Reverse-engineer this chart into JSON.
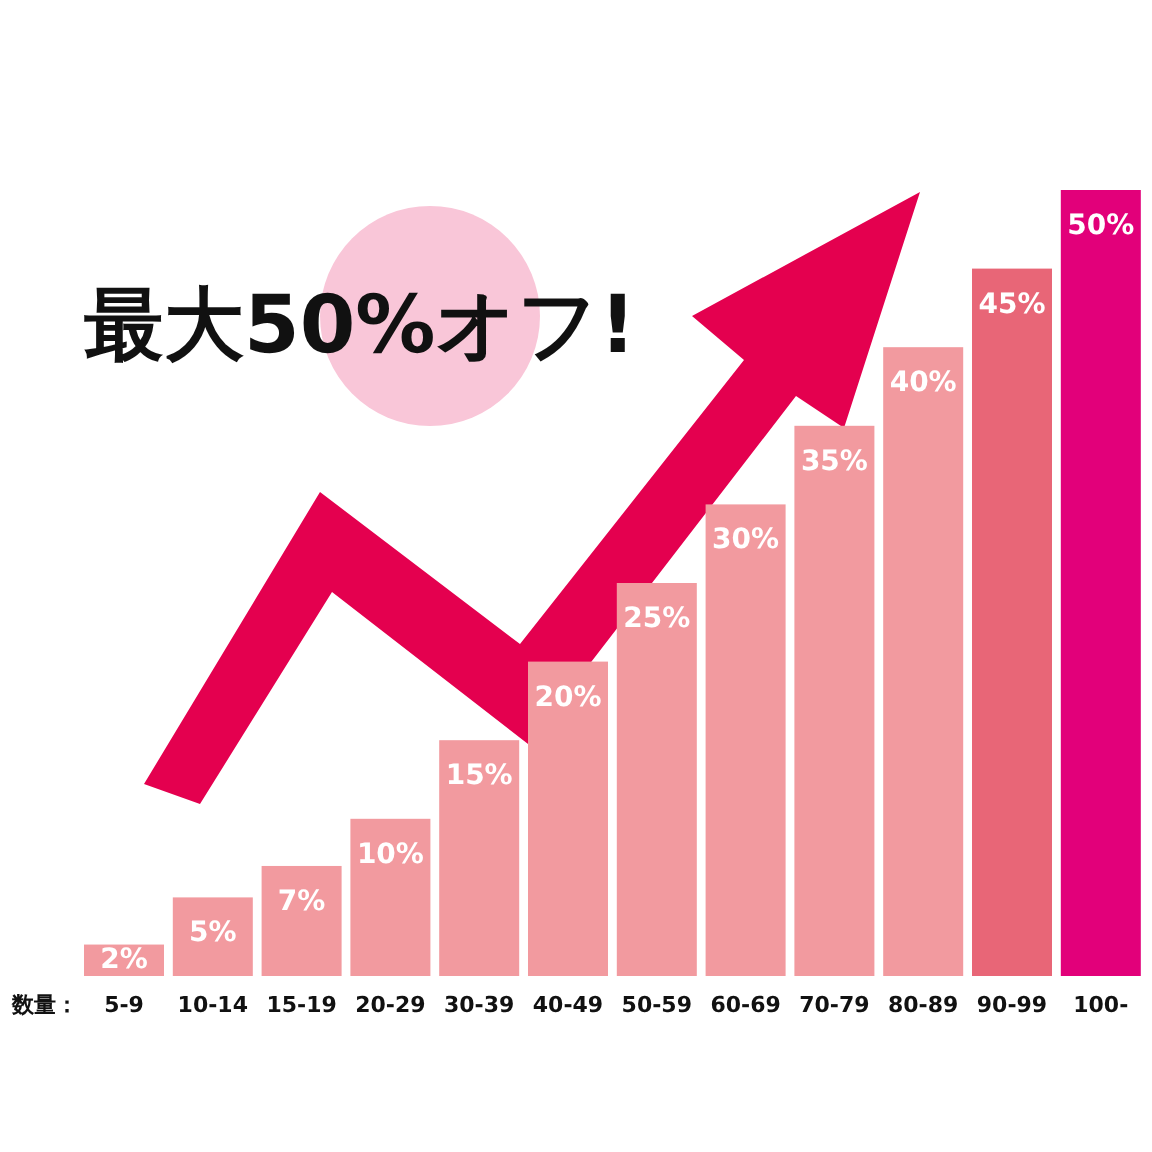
{
  "chart_data": {
    "type": "bar",
    "xlabel": "数量：",
    "annotations": [
      "最大50%オフ!"
    ],
    "categories": [
      "5-9",
      "10-14",
      "15-19",
      "20-29",
      "30-39",
      "40-49",
      "50-59",
      "60-69",
      "70-79",
      "80-89",
      "90-99",
      "100-"
    ],
    "values": [
      2,
      5,
      7,
      10,
      15,
      20,
      25,
      30,
      35,
      40,
      45,
      50
    ],
    "value_labels": [
      "2%",
      "5%",
      "7%",
      "10%",
      "15%",
      "20%",
      "25%",
      "30%",
      "35%",
      "40%",
      "45%",
      "50%"
    ],
    "colors": [
      "#f29a9f",
      "#f29a9f",
      "#f29a9f",
      "#f29a9f",
      "#f29a9f",
      "#f29a9f",
      "#f29a9f",
      "#f29a9f",
      "#f29a9f",
      "#f29a9f",
      "#e86677",
      "#e2007a"
    ],
    "relative": false
  }
}
